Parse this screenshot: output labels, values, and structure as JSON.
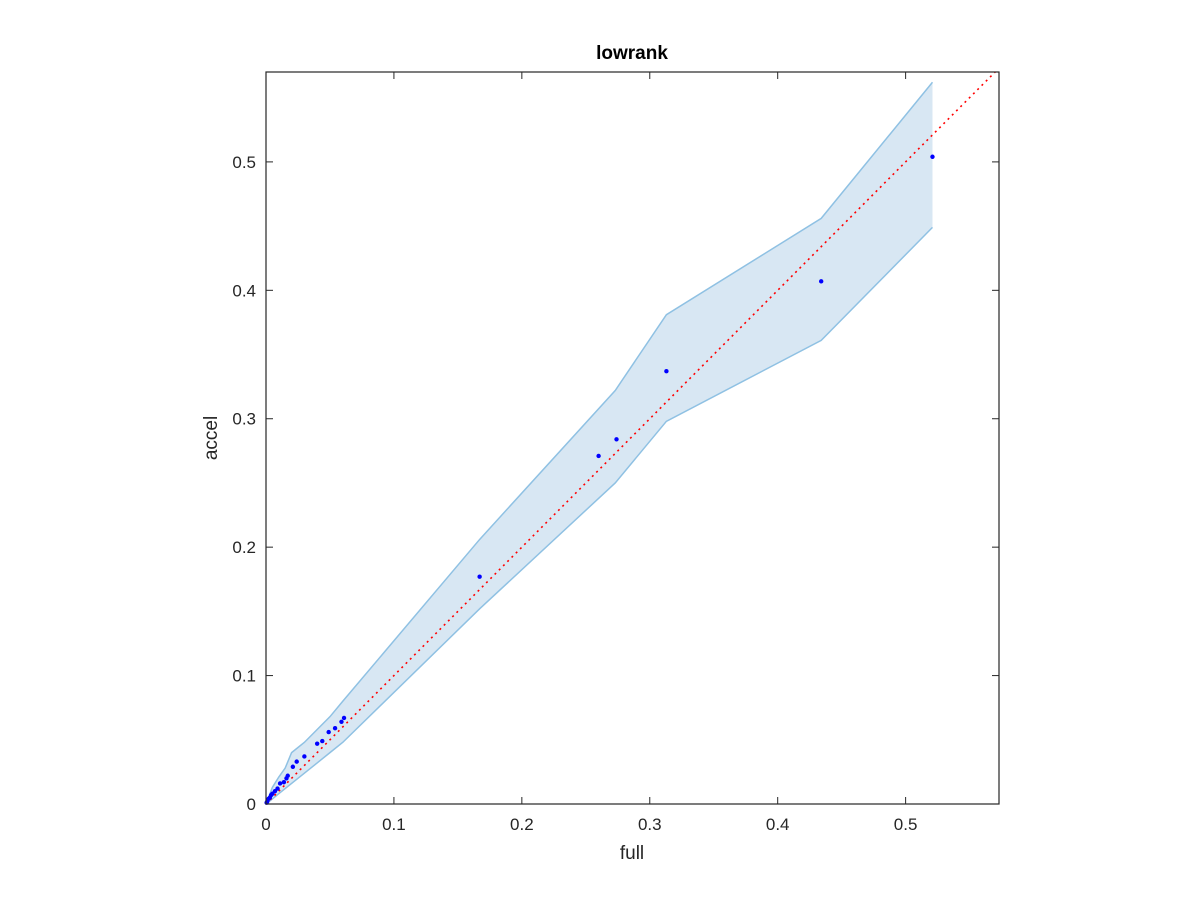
{
  "chart_data": {
    "type": "scatter",
    "title": "lowrank",
    "xlabel": "full",
    "ylabel": "accel",
    "xlim": [
      0,
      0.573
    ],
    "ylim": [
      0,
      0.57
    ],
    "xticks": [
      0,
      0.1,
      0.2,
      0.3,
      0.4,
      0.5
    ],
    "yticks": [
      0,
      0.1,
      0.2,
      0.3,
      0.4,
      0.5
    ],
    "xtick_labels": [
      "0",
      "0.1",
      "0.2",
      "0.3",
      "0.4",
      "0.5"
    ],
    "ytick_labels": [
      "0",
      "0.1",
      "0.2",
      "0.3",
      "0.4",
      "0.5"
    ],
    "grid": false,
    "points": {
      "x": [
        0.0005,
        0.001,
        0.002,
        0.003,
        0.004,
        0.005,
        0.007,
        0.009,
        0.011,
        0.014,
        0.016,
        0.017,
        0.021,
        0.024,
        0.03,
        0.04,
        0.044,
        0.049,
        0.054,
        0.059,
        0.061,
        0.167,
        0.26,
        0.274,
        0.313,
        0.434,
        0.521
      ],
      "y": [
        0.001,
        0.002,
        0.004,
        0.005,
        0.007,
        0.008,
        0.01,
        0.012,
        0.016,
        0.017,
        0.02,
        0.022,
        0.029,
        0.033,
        0.037,
        0.047,
        0.049,
        0.056,
        0.059,
        0.064,
        0.067,
        0.177,
        0.271,
        0.284,
        0.337,
        0.407,
        0.504
      ],
      "color": "#0000ff"
    },
    "band": {
      "x": [
        0,
        0.005,
        0.01,
        0.015,
        0.02,
        0.03,
        0.04,
        0.05,
        0.06,
        0.167,
        0.273,
        0.313,
        0.434,
        0.521
      ],
      "upper": [
        0,
        0.013,
        0.021,
        0.028,
        0.04,
        0.048,
        0.058,
        0.068,
        0.08,
        0.206,
        0.322,
        0.381,
        0.456,
        0.562
      ],
      "lower": [
        0,
        0.004,
        0.008,
        0.012,
        0.016,
        0.024,
        0.032,
        0.04,
        0.048,
        0.152,
        0.25,
        0.298,
        0.361,
        0.449
      ],
      "fill_color": "#d8e7f3",
      "edge_color": "#8fc1e3"
    },
    "reference_line": {
      "type": "y=x",
      "style": "dotted",
      "color": "#ff0000"
    }
  }
}
